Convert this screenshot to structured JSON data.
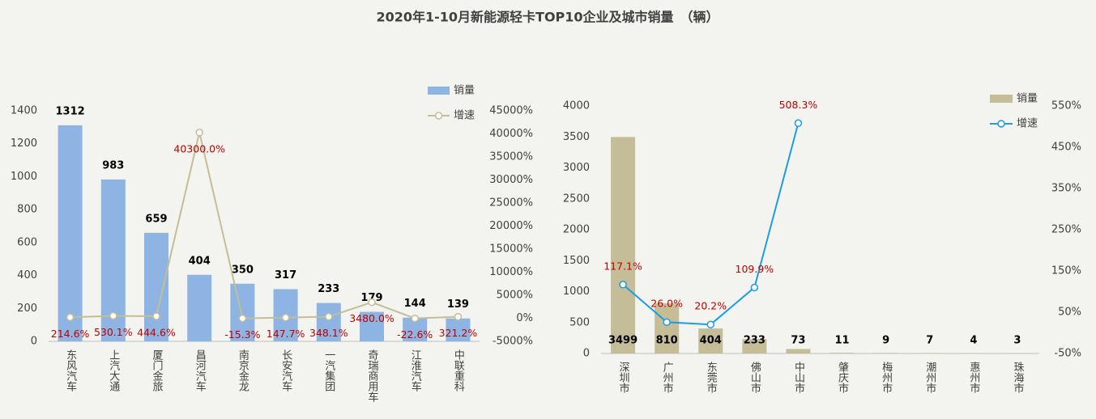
{
  "title": "2020年1-10月新能源轻卡TOP10企业及城市销量　（辆）",
  "chart_data": [
    {
      "type": "bar_line",
      "categories": [
        "东风汽车",
        "上汽大通",
        "厦门金旅",
        "昌河汽车",
        "南京金龙",
        "长安汽车",
        "一汽集团",
        "奇瑞商用车",
        "江淮汽车",
        "中联重科"
      ],
      "series": [
        {
          "name": "销量",
          "color": "#8eb4e3",
          "values": [
            1312,
            983,
            659,
            404,
            350,
            317,
            233,
            179,
            144,
            139
          ]
        },
        {
          "name": "增速",
          "color": "#c4bd97",
          "axis": "y2",
          "values": [
            214.6,
            530.1,
            444.6,
            40300.0,
            -15.3,
            147.7,
            348.1,
            3480.0,
            -22.6,
            321.2
          ],
          "value_labels": [
            "214.6%",
            "530.1%",
            "444.6%",
            "40300.0%",
            "-15.3%",
            "147.7%",
            "348.1%",
            "3480.0%",
            "-22.6%",
            "321.2%"
          ]
        }
      ],
      "ylim": [
        0,
        1400
      ],
      "yticks": [
        0,
        200,
        400,
        600,
        800,
        1000,
        1200,
        1400
      ],
      "y2lim": [
        -5000,
        45000
      ],
      "y2ticks": [
        {
          "value": -5000,
          "label": "-5000%"
        },
        {
          "value": 0,
          "label": "0%"
        },
        {
          "value": 5000,
          "label": "5000%"
        },
        {
          "value": 10000,
          "label": "10000%"
        },
        {
          "value": 15000,
          "label": "15000%"
        },
        {
          "value": 20000,
          "label": "20000%"
        },
        {
          "value": 25000,
          "label": "25000%"
        },
        {
          "value": 30000,
          "label": "30000%"
        },
        {
          "value": 35000,
          "label": "35000%"
        },
        {
          "value": 40000,
          "label": "40000%"
        },
        {
          "value": 45000,
          "label": "45000%"
        }
      ],
      "legend": "upper right",
      "grid": false
    },
    {
      "type": "bar_line",
      "categories": [
        "深圳市",
        "广州市",
        "东莞市",
        "佛山市",
        "中山市",
        "肇庆市",
        "梅州市",
        "潮州市",
        "惠州市",
        "珠海市"
      ],
      "series": [
        {
          "name": "销量",
          "color": "#c4bd97",
          "values": [
            3499,
            810,
            404,
            233,
            73,
            11,
            9,
            7,
            4,
            3
          ]
        },
        {
          "name": "增速",
          "color": "#1b9de2",
          "axis": "y2",
          "values": [
            117.1,
            26.0,
            20.2,
            109.9,
            508.3,
            null,
            null,
            null,
            null,
            null
          ],
          "value_labels": [
            "117.1%",
            "26.0%",
            "20.2%",
            "109.9%",
            "508.3%",
            null,
            null,
            null,
            null,
            null
          ]
        }
      ],
      "ylim": [
        0,
        4000
      ],
      "yticks": [
        0,
        500,
        1000,
        1500,
        2000,
        2500,
        3000,
        3500,
        4000
      ],
      "y2lim": [
        -50,
        550
      ],
      "y2ticks": [
        {
          "value": -50,
          "label": "-50%"
        },
        {
          "value": 50,
          "label": "50%"
        },
        {
          "value": 150,
          "label": "150%"
        },
        {
          "value": 250,
          "label": "250%"
        },
        {
          "value": 350,
          "label": "350%"
        },
        {
          "value": 450,
          "label": "450%"
        },
        {
          "value": 550,
          "label": "550%"
        }
      ],
      "legend": "upper right",
      "grid": false
    }
  ]
}
